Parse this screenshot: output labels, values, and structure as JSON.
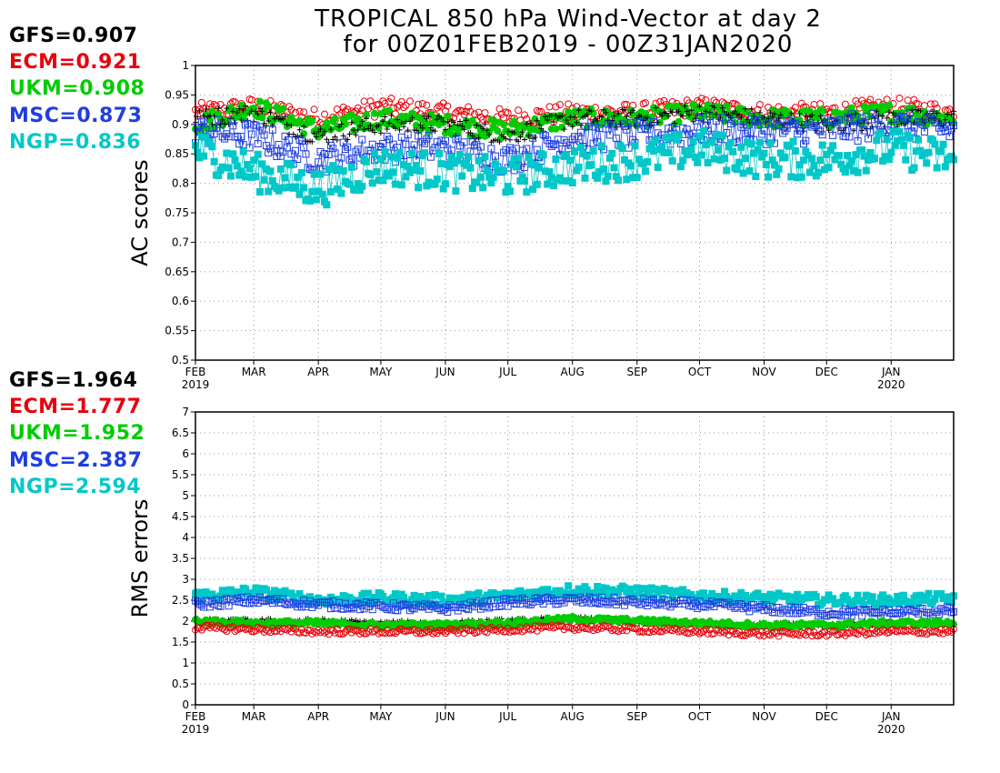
{
  "title": {
    "line1": "TROPICAL 850 hPa Wind-Vector at day 2",
    "line2": "for 00Z01FEB2019 - 00Z31JAN2020"
  },
  "colors": {
    "GFS": "#000000",
    "ECM": "#e8000b",
    "UKM": "#00cc00",
    "MSC": "#1f3ee0",
    "NGP": "#00c8c8"
  },
  "markers": {
    "GFS": "plus",
    "ECM": "open-circle",
    "UKM": "filled-circle",
    "MSC": "open-square",
    "NGP": "filled-square"
  },
  "chart_data": [
    {
      "type": "scatter",
      "ylabel": "AC scores",
      "ylim": [
        0.5,
        1.0
      ],
      "yticks": [
        "0.5",
        "0.55",
        "0.6",
        "0.65",
        "0.7",
        "0.75",
        "0.8",
        "0.85",
        "0.9",
        "0.95",
        "1"
      ],
      "x_range": [
        "2019-02-01",
        "2020-01-31"
      ],
      "xticks": [
        {
          "label": "FEB",
          "sub": "2019"
        },
        {
          "label": "MAR",
          "sub": ""
        },
        {
          "label": "APR",
          "sub": ""
        },
        {
          "label": "MAY",
          "sub": ""
        },
        {
          "label": "JUN",
          "sub": ""
        },
        {
          "label": "JUL",
          "sub": ""
        },
        {
          "label": "AUG",
          "sub": ""
        },
        {
          "label": "SEP",
          "sub": ""
        },
        {
          "label": "OCT",
          "sub": ""
        },
        {
          "label": "NOV",
          "sub": ""
        },
        {
          "label": "DEC",
          "sub": ""
        },
        {
          "label": "JAN",
          "sub": "2020"
        }
      ],
      "grid": true,
      "legend": [
        {
          "model": "GFS",
          "text": "GFS=0.907"
        },
        {
          "model": "ECM",
          "text": "ECM=0.921"
        },
        {
          "model": "UKM",
          "text": "UKM=0.908"
        },
        {
          "model": "MSC",
          "text": "MSC=0.873"
        },
        {
          "model": "NGP",
          "text": "NGP=0.836"
        }
      ],
      "series": [
        {
          "name": "ECM",
          "x": [
            "2019-02-01",
            "2019-03-01",
            "2019-04-01",
            "2019-05-01",
            "2019-06-01",
            "2019-07-01",
            "2019-08-01",
            "2019-09-01",
            "2019-10-01",
            "2019-11-01",
            "2019-12-01",
            "2020-01-01",
            "2020-01-31"
          ],
          "values": [
            0.92,
            0.93,
            0.91,
            0.93,
            0.92,
            0.91,
            0.92,
            0.92,
            0.93,
            0.92,
            0.92,
            0.93,
            0.92
          ]
        },
        {
          "name": "UKM",
          "x": [
            "2019-02-01",
            "2019-03-01",
            "2019-04-01",
            "2019-05-01",
            "2019-06-01",
            "2019-07-01",
            "2019-08-01",
            "2019-09-01",
            "2019-10-01",
            "2019-11-01",
            "2019-12-01",
            "2020-01-01",
            "2020-01-31"
          ],
          "values": [
            0.9,
            0.93,
            0.89,
            0.91,
            0.9,
            0.89,
            0.91,
            0.91,
            0.92,
            0.91,
            0.91,
            0.92,
            0.91
          ]
        },
        {
          "name": "GFS",
          "x": [
            "2019-02-01",
            "2019-03-01",
            "2019-04-01",
            "2019-05-01",
            "2019-06-01",
            "2019-07-01",
            "2019-08-01",
            "2019-09-01",
            "2019-10-01",
            "2019-11-01",
            "2019-12-01",
            "2020-01-01",
            "2020-01-31"
          ],
          "values": [
            0.91,
            0.92,
            0.88,
            0.9,
            0.9,
            0.88,
            0.91,
            0.91,
            0.92,
            0.91,
            0.9,
            0.91,
            0.91
          ]
        },
        {
          "name": "MSC",
          "x": [
            "2019-02-01",
            "2019-03-01",
            "2019-04-01",
            "2019-05-01",
            "2019-06-01",
            "2019-07-01",
            "2019-08-01",
            "2019-09-01",
            "2019-10-01",
            "2019-11-01",
            "2019-12-01",
            "2020-01-01",
            "2020-01-31"
          ],
          "values": [
            0.89,
            0.88,
            0.84,
            0.86,
            0.86,
            0.84,
            0.88,
            0.88,
            0.89,
            0.89,
            0.89,
            0.9,
            0.89
          ]
        },
        {
          "name": "NGP",
          "x": [
            "2019-02-01",
            "2019-03-01",
            "2019-04-01",
            "2019-05-01",
            "2019-06-01",
            "2019-07-01",
            "2019-08-01",
            "2019-09-01",
            "2019-10-01",
            "2019-11-01",
            "2019-12-01",
            "2020-01-01",
            "2020-01-31"
          ],
          "values": [
            0.86,
            0.82,
            0.79,
            0.83,
            0.82,
            0.81,
            0.83,
            0.84,
            0.86,
            0.84,
            0.84,
            0.86,
            0.84
          ]
        }
      ]
    },
    {
      "type": "scatter",
      "ylabel": "RMS errors",
      "ylim": [
        0,
        7
      ],
      "yticks": [
        "0",
        "0.5",
        "1",
        "1.5",
        "2",
        "2.5",
        "3",
        "3.5",
        "4",
        "4.5",
        "5",
        "5.5",
        "6",
        "6.5",
        "7"
      ],
      "x_range": [
        "2019-02-01",
        "2020-01-31"
      ],
      "xticks": [
        {
          "label": "FEB",
          "sub": "2019"
        },
        {
          "label": "MAR",
          "sub": ""
        },
        {
          "label": "APR",
          "sub": ""
        },
        {
          "label": "MAY",
          "sub": ""
        },
        {
          "label": "JUN",
          "sub": ""
        },
        {
          "label": "JUL",
          "sub": ""
        },
        {
          "label": "AUG",
          "sub": ""
        },
        {
          "label": "SEP",
          "sub": ""
        },
        {
          "label": "OCT",
          "sub": ""
        },
        {
          "label": "NOV",
          "sub": ""
        },
        {
          "label": "DEC",
          "sub": ""
        },
        {
          "label": "JAN",
          "sub": "2020"
        }
      ],
      "grid": true,
      "legend": [
        {
          "model": "GFS",
          "text": "GFS=1.964"
        },
        {
          "model": "ECM",
          "text": "ECM=1.777"
        },
        {
          "model": "UKM",
          "text": "UKM=1.952"
        },
        {
          "model": "MSC",
          "text": "MSC=2.387"
        },
        {
          "model": "NGP",
          "text": "NGP=2.594"
        }
      ],
      "series": [
        {
          "name": "NGP",
          "x": [
            "2019-02-01",
            "2019-03-01",
            "2019-04-01",
            "2019-05-01",
            "2019-06-01",
            "2019-07-01",
            "2019-08-01",
            "2019-09-01",
            "2019-10-01",
            "2019-11-01",
            "2019-12-01",
            "2020-01-01",
            "2020-01-31"
          ],
          "values": [
            2.6,
            2.7,
            2.5,
            2.55,
            2.5,
            2.6,
            2.75,
            2.7,
            2.6,
            2.55,
            2.5,
            2.5,
            2.55
          ]
        },
        {
          "name": "MSC",
          "x": [
            "2019-02-01",
            "2019-03-01",
            "2019-04-01",
            "2019-05-01",
            "2019-06-01",
            "2019-07-01",
            "2019-08-01",
            "2019-09-01",
            "2019-10-01",
            "2019-11-01",
            "2019-12-01",
            "2020-01-01",
            "2020-01-31"
          ],
          "values": [
            2.4,
            2.5,
            2.4,
            2.35,
            2.3,
            2.45,
            2.5,
            2.45,
            2.4,
            2.3,
            2.2,
            2.2,
            2.25
          ]
        },
        {
          "name": "GFS",
          "x": [
            "2019-02-01",
            "2019-03-01",
            "2019-04-01",
            "2019-05-01",
            "2019-06-01",
            "2019-07-01",
            "2019-08-01",
            "2019-09-01",
            "2019-10-01",
            "2019-11-01",
            "2019-12-01",
            "2020-01-01",
            "2020-01-31"
          ],
          "values": [
            2.0,
            2.0,
            2.0,
            1.95,
            1.95,
            2.0,
            2.05,
            2.0,
            1.95,
            1.9,
            1.9,
            1.95,
            1.95
          ]
        },
        {
          "name": "UKM",
          "x": [
            "2019-02-01",
            "2019-03-01",
            "2019-04-01",
            "2019-05-01",
            "2019-06-01",
            "2019-07-01",
            "2019-08-01",
            "2019-09-01",
            "2019-10-01",
            "2019-11-01",
            "2019-12-01",
            "2020-01-01",
            "2020-01-31"
          ],
          "values": [
            2.0,
            1.95,
            1.95,
            1.9,
            1.9,
            1.95,
            2.05,
            2.0,
            1.95,
            1.9,
            1.9,
            1.95,
            1.95
          ]
        },
        {
          "name": "ECM",
          "x": [
            "2019-02-01",
            "2019-03-01",
            "2019-04-01",
            "2019-05-01",
            "2019-06-01",
            "2019-07-01",
            "2019-08-01",
            "2019-09-01",
            "2019-10-01",
            "2019-11-01",
            "2019-12-01",
            "2020-01-01",
            "2020-01-31"
          ],
          "values": [
            1.85,
            1.8,
            1.75,
            1.75,
            1.75,
            1.8,
            1.85,
            1.8,
            1.75,
            1.7,
            1.7,
            1.75,
            1.75
          ]
        }
      ]
    }
  ]
}
